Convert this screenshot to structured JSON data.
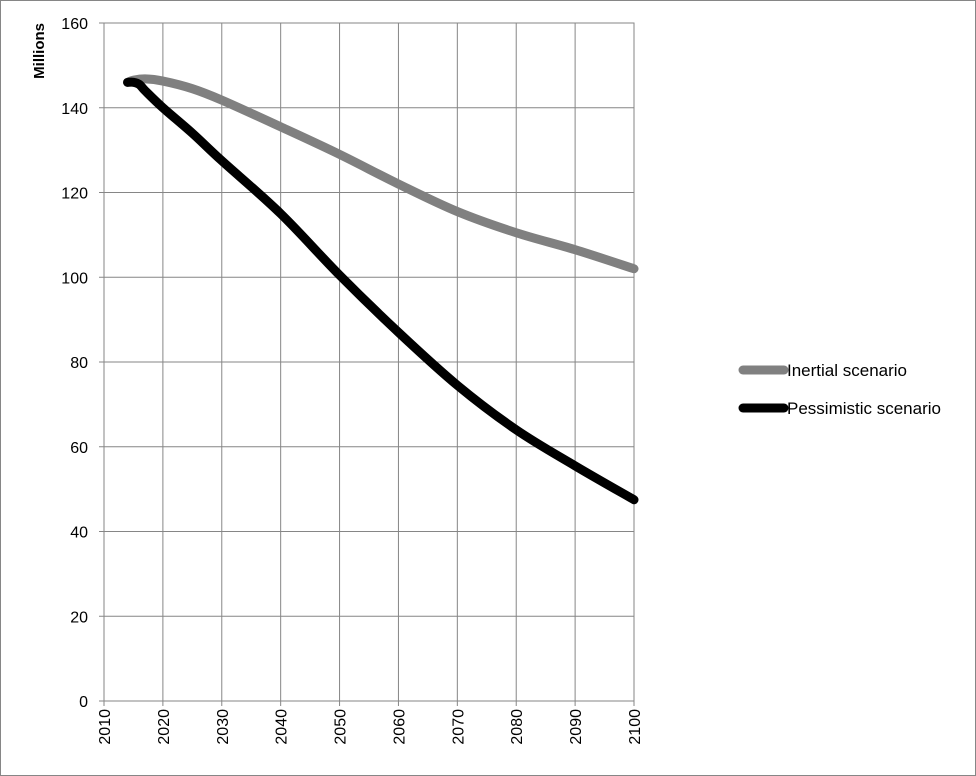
{
  "chart_data": {
    "type": "line",
    "title": "",
    "xlabel": "",
    "ylabel": "Millions",
    "xlim": [
      2010,
      2100
    ],
    "ylim": [
      0,
      160
    ],
    "xticks": [
      2010,
      2020,
      2030,
      2040,
      2050,
      2060,
      2070,
      2080,
      2090,
      2100
    ],
    "yticks": [
      0,
      20,
      40,
      60,
      80,
      100,
      120,
      140,
      160
    ],
    "grid": true,
    "legend_position": "right",
    "series": [
      {
        "name": "Inertial scenario",
        "color": "#808080",
        "x": [
          2014,
          2015,
          2017,
          2020,
          2025,
          2030,
          2040,
          2050,
          2060,
          2070,
          2080,
          2090,
          2100
        ],
        "y": [
          146,
          146.5,
          146.8,
          146.3,
          144.5,
          141.8,
          135.5,
          129,
          122,
          115.5,
          110.5,
          106.5,
          102
        ]
      },
      {
        "name": "Pessimistic scenario",
        "color": "#000000",
        "x": [
          2014,
          2015,
          2016,
          2017,
          2020,
          2025,
          2030,
          2040,
          2050,
          2060,
          2070,
          2080,
          2090,
          2100
        ],
        "y": [
          146,
          146,
          145.5,
          144,
          140,
          134,
          127.5,
          115,
          100.5,
          87,
          74.5,
          64,
          55.5,
          47.5
        ]
      }
    ]
  }
}
